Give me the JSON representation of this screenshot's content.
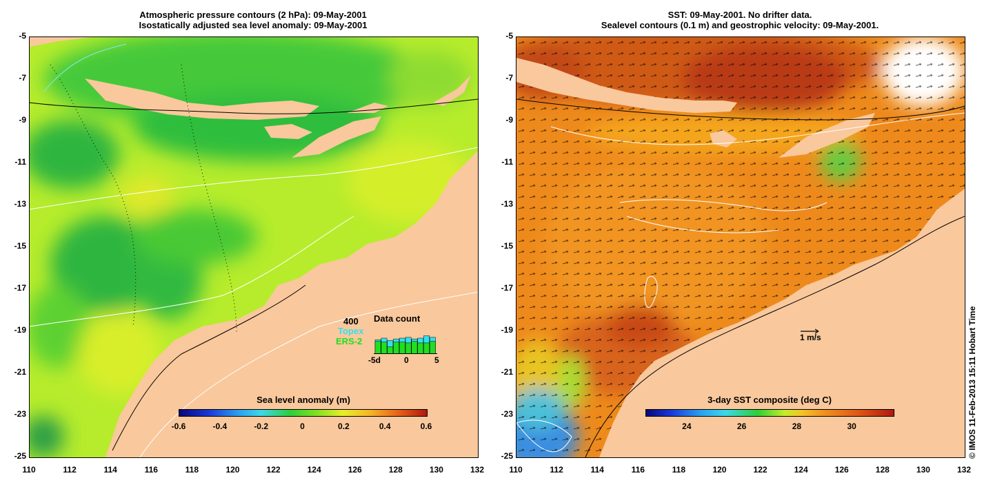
{
  "left_panel": {
    "title_line1": "Atmospheric pressure contours (2 hPa): 09-May-2001",
    "title_line2": "Isostatically adjusted sea level anomaly: 09-May-2001",
    "colorbar": {
      "title": "Sea level anomaly (m)",
      "ticks": [
        "-0.6",
        "-0.4",
        "-0.2",
        "0",
        "0.2",
        "0.4",
        "0.6"
      ],
      "min": -0.6,
      "max": 0.6
    },
    "data_count": {
      "title": "Data count",
      "max_label": "400",
      "series": [
        {
          "name": "Topex",
          "color": "#33e0f0",
          "values": [
            180,
            200,
            170,
            190,
            200,
            210,
            190,
            200,
            230,
            210
          ]
        },
        {
          "name": "ERS-2",
          "color": "#22dd22",
          "values": [
            160,
            150,
            90,
            150,
            150,
            140,
            160,
            140,
            140,
            160
          ]
        }
      ],
      "x_ticks": [
        "-5d",
        "0",
        "5"
      ]
    }
  },
  "right_panel": {
    "title_line1": "SST: 09-May-2001. No drifter data.",
    "title_line2": "Sealevel contours (0.1 m) and geostrophic velocity: 09-May-2001.",
    "colorbar": {
      "title": "3-day SST composite (deg C)",
      "ticks": [
        "24",
        "26",
        "28",
        "30"
      ],
      "min": 22.5,
      "max": 31.5
    },
    "velocity_scale_label": "1 m/s"
  },
  "axes": {
    "y_ticks": [
      "-5",
      "-7",
      "-9",
      "-11",
      "-13",
      "-15",
      "-17",
      "-19",
      "-21",
      "-23",
      "-25"
    ],
    "x_ticks": [
      "110",
      "112",
      "114",
      "116",
      "118",
      "120",
      "122",
      "124",
      "126",
      "128",
      "130",
      "132"
    ]
  },
  "copyright": "© IMOS 11-Feb-2013 15:11 Hobart Time",
  "colors": {
    "land": "#f9c89c",
    "sla_green_dark": "#1db33a",
    "sla_green": "#3fcb2e",
    "sla_yellow": "#c9f02a",
    "sst_orange": "#f08a18",
    "sst_dark_orange": "#d9660e",
    "sst_red": "#b8301a",
    "sst_blue": "#2a78e0"
  }
}
